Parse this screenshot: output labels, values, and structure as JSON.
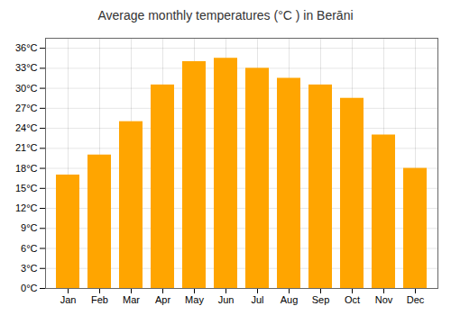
{
  "chart_data": {
    "type": "bar",
    "title": "Average monthly temperatures (°C ) in Berāni",
    "categories": [
      "Jan",
      "Feb",
      "Mar",
      "Apr",
      "May",
      "Jun",
      "Jul",
      "Aug",
      "Sep",
      "Oct",
      "Nov",
      "Dec"
    ],
    "values": [
      17.0,
      20.0,
      25.0,
      30.5,
      34.0,
      34.5,
      33.0,
      31.5,
      30.5,
      28.5,
      23.0,
      18.0
    ],
    "color": "#FFA500",
    "ylim": [
      0,
      37.5
    ],
    "yticks": [
      {
        "value": 0,
        "label": "0°C"
      },
      {
        "value": 3,
        "label": "3°C"
      },
      {
        "value": 6,
        "label": "6°C"
      },
      {
        "value": 9,
        "label": "9°C"
      },
      {
        "value": 12,
        "label": "12°C"
      },
      {
        "value": 15,
        "label": "15°C"
      },
      {
        "value": 18,
        "label": "18°C"
      },
      {
        "value": 21,
        "label": "21°C"
      },
      {
        "value": 24,
        "label": "24°C"
      },
      {
        "value": 27,
        "label": "27°C"
      },
      {
        "value": 30,
        "label": "30°C"
      },
      {
        "value": 33,
        "label": "33°C"
      },
      {
        "value": 36,
        "label": "36°C"
      }
    ],
    "grid": true
  }
}
